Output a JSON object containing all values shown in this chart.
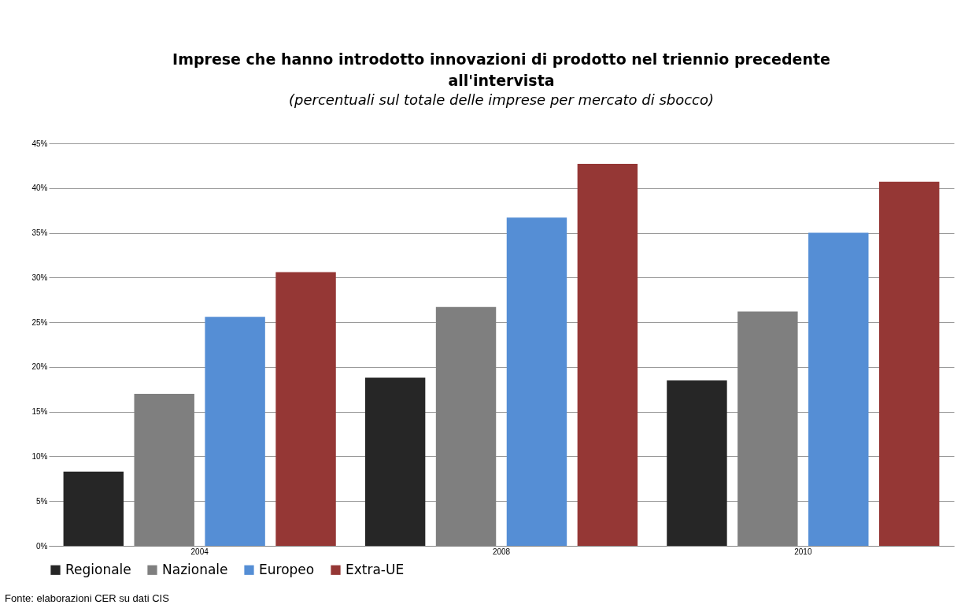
{
  "chart_data": {
    "type": "bar",
    "title": "Imprese che hanno introdotto innovazioni di prodotto nel triennio precedente all'intervista",
    "subtitle": "(percentuali sul totale delle imprese per mercato di sbocco)",
    "categories": [
      "2004",
      "2008",
      "2010"
    ],
    "series": [
      {
        "name": "Regionale",
        "color": "#262626",
        "values": [
          8.3,
          18.8,
          18.5
        ]
      },
      {
        "name": "Nazionale",
        "color": "#7f7f7f",
        "values": [
          17.0,
          26.7,
          26.2
        ]
      },
      {
        "name": "Europeo",
        "color": "#558ed5",
        "values": [
          25.6,
          36.7,
          35.0
        ]
      },
      {
        "name": "Extra-UE",
        "color": "#953735",
        "values": [
          30.6,
          42.7,
          40.7
        ]
      }
    ],
    "ylim": [
      0,
      45
    ],
    "yticks": [
      {
        "value": 0,
        "label": "0%"
      },
      {
        "value": 5,
        "label": "5%"
      },
      {
        "value": 10,
        "label": "10%"
      },
      {
        "value": 15,
        "label": "15%"
      },
      {
        "value": 20,
        "label": "20%"
      },
      {
        "value": 25,
        "label": "25%"
      },
      {
        "value": 30,
        "label": "30%"
      },
      {
        "value": 35,
        "label": "35%"
      },
      {
        "value": 40,
        "label": "40%"
      },
      {
        "value": 45,
        "label": "45%"
      }
    ],
    "grid": "y",
    "legend": "bottom",
    "annotations": [
      "Fonte: elaborazioni CER su dati CIS"
    ]
  }
}
